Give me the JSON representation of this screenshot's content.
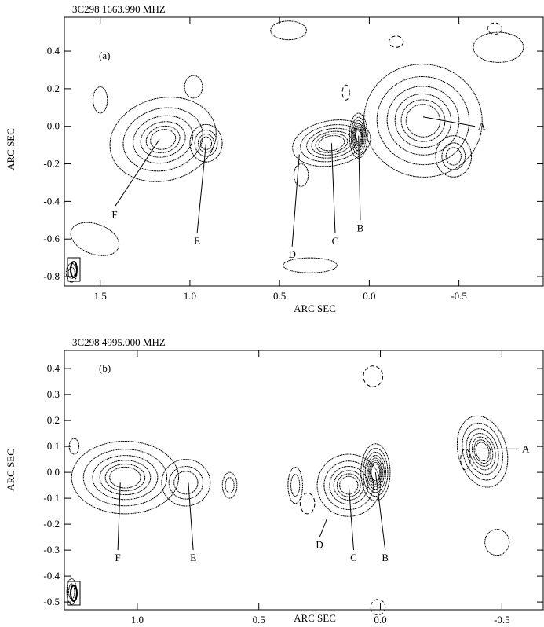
{
  "chart_data": [
    {
      "type": "contour",
      "header": "3C298   1663.990 MHZ",
      "panel_label": "(a)",
      "xlabel": "ARC SEC",
      "ylabel": "ARC SEC",
      "xlim": [
        1.7,
        -0.97
      ],
      "ylim": [
        -0.85,
        0.58
      ],
      "x_ticks": [
        "1.5",
        "1.0",
        "0.5",
        "0.0",
        "-0.5"
      ],
      "y_ticks": [
        "0.4",
        "0.2",
        "0.0",
        "-0.2",
        "-0.4",
        "-0.6",
        "-0.8"
      ],
      "components": [
        {
          "label": "A",
          "x": -0.3,
          "y": 0.05,
          "label_x": -0.59,
          "label_y": 0.0
        },
        {
          "label": "B",
          "x": 0.06,
          "y": -0.05,
          "label_x": 0.05,
          "label_y": -0.5
        },
        {
          "label": "C",
          "x": 0.21,
          "y": -0.09,
          "label_x": 0.19,
          "label_y": -0.57
        },
        {
          "label": "D",
          "x": 0.39,
          "y": -0.15,
          "label_x": 0.43,
          "label_y": -0.64
        },
        {
          "label": "E",
          "x": 0.91,
          "y": -0.09,
          "label_x": 0.96,
          "label_y": -0.57
        },
        {
          "label": "F",
          "x": 1.17,
          "y": -0.07,
          "label_x": 1.42,
          "label_y": -0.43
        }
      ]
    },
    {
      "type": "contour",
      "header": "3C298   4995.000 MHZ",
      "panel_label": "(b)",
      "xlabel": "ARC SEC",
      "ylabel": "ARC SEC",
      "xlim": [
        1.3,
        -0.67
      ],
      "ylim": [
        -0.53,
        0.47
      ],
      "x_ticks": [
        "1.0",
        "0.5",
        "0.0",
        "-0.5"
      ],
      "y_ticks": [
        "0.4",
        "0.3",
        "0.2",
        "0.1",
        "0.0",
        "-0.1",
        "-0.2",
        "-0.3",
        "-0.4",
        "-0.5"
      ],
      "components": [
        {
          "label": "A",
          "x": -0.42,
          "y": 0.09,
          "label_x": -0.57,
          "label_y": 0.09
        },
        {
          "label": "B",
          "x": 0.02,
          "y": 0.0,
          "label_x": -0.02,
          "label_y": -0.3
        },
        {
          "label": "C",
          "x": 0.13,
          "y": -0.05,
          "label_x": 0.11,
          "label_y": -0.3
        },
        {
          "label": "D",
          "x": 0.22,
          "y": -0.18,
          "label_x": 0.25,
          "label_y": -0.25
        },
        {
          "label": "E",
          "x": 0.79,
          "y": -0.04,
          "label_x": 0.77,
          "label_y": -0.3
        },
        {
          "label": "F",
          "x": 1.07,
          "y": -0.04,
          "label_x": 1.08,
          "label_y": -0.3
        }
      ]
    }
  ]
}
